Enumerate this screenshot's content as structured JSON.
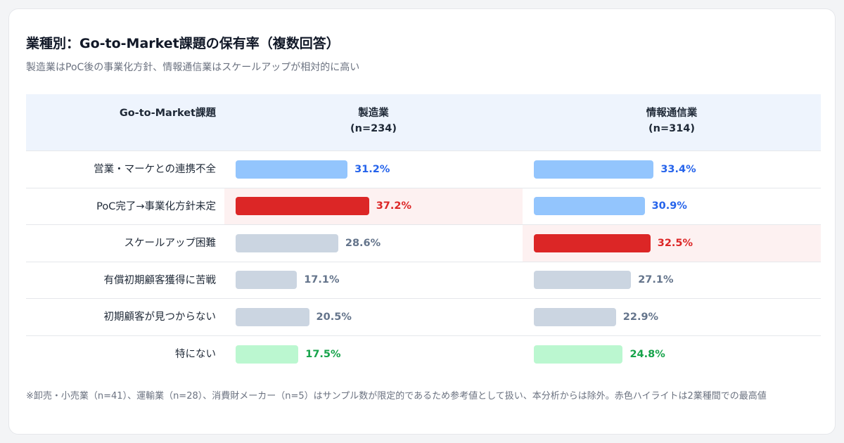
{
  "title": "業種別：Go-to-Market課題の保有率（複数回答）",
  "subtitle": "製造業はPoC後の事業化方針、情報通信業はスケールアップが相対的に高い",
  "footnote": "※卸売・小売業（n=41）、運輸業（n=28）、消費財メーカー（n=5）はサンプル数が限定的であるため参考値として扱い、本分析からは除外。赤色ハイライトは2業種間での最高値",
  "colors": {
    "blue_bar": "#93c5fd",
    "blue_text": "#2563eb",
    "red_bar": "#dc2626",
    "red_text": "#dc2626",
    "gray_bar": "#cbd5e1",
    "gray_text": "#64748b",
    "green_bar": "#bbf7d0",
    "green_text": "#16a34a",
    "highlight_bg": "#fdf1f1"
  },
  "chart_data": {
    "type": "bar",
    "header_label": "Go-to-Market課題",
    "columns": [
      {
        "name": "製造業",
        "n": "(n=234)"
      },
      {
        "name": "情報通信業",
        "n": "(n=314)"
      }
    ],
    "scale_max": 80,
    "rows": [
      {
        "label": "営業・マーケとの連携不全",
        "style": "blue",
        "values": [
          {
            "value": 31.2,
            "display": "31.2%",
            "highlight": false
          },
          {
            "value": 33.4,
            "display": "33.4%",
            "highlight": false
          }
        ]
      },
      {
        "label": "PoC完了→事業化方針未定",
        "style": "blue",
        "values": [
          {
            "value": 37.2,
            "display": "37.2%",
            "highlight": true
          },
          {
            "value": 30.9,
            "display": "30.9%",
            "highlight": false
          }
        ]
      },
      {
        "label": "スケールアップ困難",
        "style": "gray",
        "values": [
          {
            "value": 28.6,
            "display": "28.6%",
            "highlight": false
          },
          {
            "value": 32.5,
            "display": "32.5%",
            "highlight": true
          }
        ]
      },
      {
        "label": "有償初期顧客獲得に苦戦",
        "style": "gray",
        "values": [
          {
            "value": 17.1,
            "display": "17.1%",
            "highlight": false
          },
          {
            "value": 27.1,
            "display": "27.1%",
            "highlight": false
          }
        ]
      },
      {
        "label": "初期顧客が見つからない",
        "style": "gray",
        "values": [
          {
            "value": 20.5,
            "display": "20.5%",
            "highlight": false
          },
          {
            "value": 22.9,
            "display": "22.9%",
            "highlight": false
          }
        ]
      },
      {
        "label": "特にない",
        "style": "green",
        "values": [
          {
            "value": 17.5,
            "display": "17.5%",
            "highlight": false
          },
          {
            "value": 24.8,
            "display": "24.8%",
            "highlight": false
          }
        ]
      }
    ]
  }
}
